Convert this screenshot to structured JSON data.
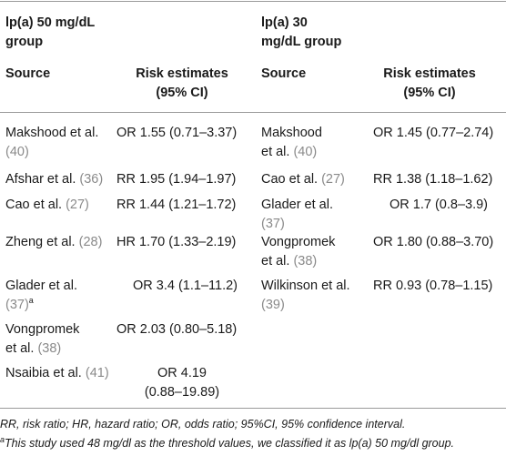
{
  "headers": {
    "group_left": "lp(a) 50 mg/dL group",
    "group_right": "lp(a) 30 mg/dL group",
    "source": "Source",
    "risk": "Risk estimates (95% CI)"
  },
  "left_rows": [
    {
      "author": "Makshood et al.",
      "ref": "(40)",
      "sup": "",
      "estimate": "OR 1.55 (0.71–3.37)"
    },
    {
      "author": "Afshar et al.",
      "ref": "(36)",
      "sup": "",
      "estimate": "RR 1.95 (1.94–1.97)"
    },
    {
      "author": "Cao et al.",
      "ref": "(27)",
      "sup": "",
      "estimate": "RR 1.44 (1.21–1.72)"
    },
    {
      "author": "Zheng et al.",
      "ref": "(28)",
      "sup": "",
      "estimate": "HR 1.70 (1.33–2.19)"
    },
    {
      "author": "Glader et al.",
      "ref": "(37)",
      "sup": "a",
      "estimate": "OR 3.4 (1.1–11.2)"
    },
    {
      "author": "Vongpromek et al.",
      "ref": "(38)",
      "sup": "",
      "estimate": "OR 2.03 (0.80–5.18)"
    },
    {
      "author": "Nsaibia et al.",
      "ref": "(41)",
      "sup": "",
      "estimate": "OR 4.19 (0.88–19.89)"
    }
  ],
  "right_rows": [
    {
      "author": "Makshood et al.",
      "ref": "(40)",
      "estimate": "OR 1.45 (0.77–2.74)"
    },
    {
      "author": "Cao et al.",
      "ref": "(27)",
      "estimate": "RR 1.38 (1.18–1.62)"
    },
    {
      "author": "Glader et al.",
      "ref": "(37)",
      "estimate": "OR 1.7 (0.8–3.9)"
    },
    {
      "author": "Vongpromek et al.",
      "ref": "(38)",
      "estimate": "OR 1.80 (0.88–3.70)"
    },
    {
      "author": "Wilkinson et al.",
      "ref": "(39)",
      "estimate": "RR 0.93 (0.78–1.15)"
    }
  ],
  "footnotes": {
    "abbreviations": "RR, risk ratio; HR, hazard ratio; OR, odds ratio; 95%CI, 95% confidence interval.",
    "marker": "a",
    "note_a": "This study used 48 mg/dl as the threshold values, we classified it as lp(a) 50 mg/dl group."
  }
}
